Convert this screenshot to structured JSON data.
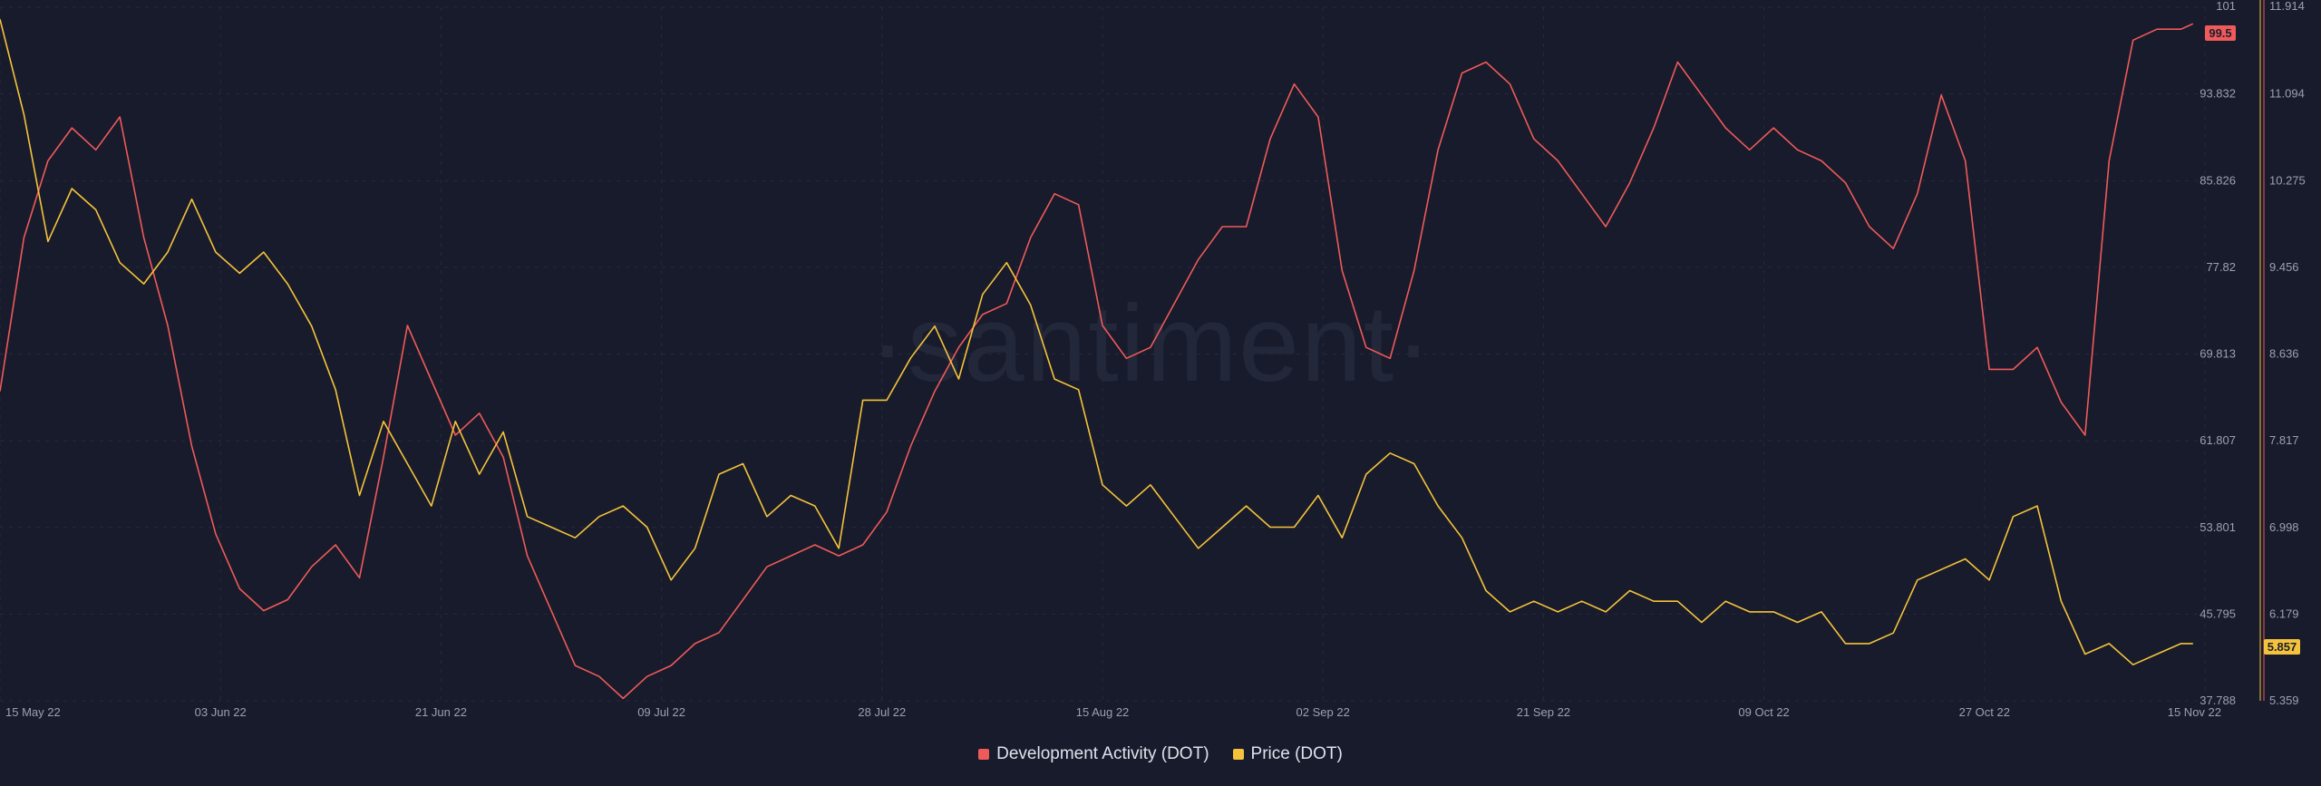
{
  "chart_data": {
    "type": "line",
    "watermark": "·santiment·",
    "x_ticks": [
      "15 May 22",
      "03 Jun 22",
      "21 Jun 22",
      "09 Jul 22",
      "28 Jul 22",
      "15 Aug 22",
      "02 Sep 22",
      "21 Sep 22",
      "09 Oct 22",
      "27 Oct 22",
      "15 Nov 22"
    ],
    "x_range": [
      "2022-05-15",
      "2022-11-15"
    ],
    "y_left": {
      "ticks": [
        "101",
        "93.832",
        "85.826",
        "77.82",
        "69.813",
        "61.807",
        "53.801",
        "45.795",
        "37.788"
      ],
      "ylim": [
        37.788,
        101
      ],
      "current_badge": "99.5",
      "current_value": 99.5
    },
    "y_right": {
      "ticks": [
        "11.914",
        "11.094",
        "10.275",
        "9.456",
        "8.636",
        "7.817",
        "6.998",
        "6.179",
        "5.359"
      ],
      "ylim": [
        5.359,
        11.914
      ],
      "current_badge": "5.857",
      "current_value": 5.857
    },
    "grid": true,
    "legend_position": "bottom-center",
    "series": [
      {
        "name": "Development Activity (DOT)",
        "color": "#ef5a5a",
        "axis": "left",
        "x": [
          "2022-05-15",
          "2022-05-17",
          "2022-05-19",
          "2022-05-21",
          "2022-05-23",
          "2022-05-25",
          "2022-05-27",
          "2022-05-29",
          "2022-05-31",
          "2022-06-02",
          "2022-06-04",
          "2022-06-06",
          "2022-06-08",
          "2022-06-10",
          "2022-06-12",
          "2022-06-14",
          "2022-06-16",
          "2022-06-18",
          "2022-06-20",
          "2022-06-22",
          "2022-06-24",
          "2022-06-26",
          "2022-06-28",
          "2022-06-30",
          "2022-07-02",
          "2022-07-04",
          "2022-07-06",
          "2022-07-08",
          "2022-07-10",
          "2022-07-12",
          "2022-07-14",
          "2022-07-16",
          "2022-07-18",
          "2022-07-20",
          "2022-07-22",
          "2022-07-24",
          "2022-07-26",
          "2022-07-28",
          "2022-07-30",
          "2022-08-01",
          "2022-08-03",
          "2022-08-05",
          "2022-08-07",
          "2022-08-09",
          "2022-08-11",
          "2022-08-13",
          "2022-08-15",
          "2022-08-17",
          "2022-08-19",
          "2022-08-21",
          "2022-08-23",
          "2022-08-25",
          "2022-08-27",
          "2022-08-29",
          "2022-08-31",
          "2022-09-02",
          "2022-09-04",
          "2022-09-06",
          "2022-09-08",
          "2022-09-10",
          "2022-09-12",
          "2022-09-14",
          "2022-09-16",
          "2022-09-18",
          "2022-09-20",
          "2022-09-22",
          "2022-09-24",
          "2022-09-26",
          "2022-09-28",
          "2022-09-30",
          "2022-10-02",
          "2022-10-04",
          "2022-10-06",
          "2022-10-08",
          "2022-10-10",
          "2022-10-12",
          "2022-10-14",
          "2022-10-16",
          "2022-10-18",
          "2022-10-20",
          "2022-10-22",
          "2022-10-24",
          "2022-10-26",
          "2022-10-28",
          "2022-10-30",
          "2022-11-01",
          "2022-11-03",
          "2022-11-05",
          "2022-11-07",
          "2022-11-09",
          "2022-11-11",
          "2022-11-13",
          "2022-11-14"
        ],
        "values": [
          66,
          80,
          87,
          90,
          88,
          91,
          80,
          72,
          61,
          53,
          48,
          46,
          47,
          50,
          52,
          49,
          60,
          72,
          67,
          62,
          64,
          60,
          51,
          46,
          41,
          40,
          38,
          40,
          41,
          43,
          44,
          47,
          50,
          51,
          52,
          51,
          52,
          55,
          61,
          66,
          70,
          73,
          74,
          80,
          84,
          83,
          72,
          69,
          70,
          74,
          78,
          81,
          81,
          89,
          94,
          91,
          77,
          70,
          69,
          77,
          88,
          95,
          96,
          94,
          89,
          87,
          84,
          81,
          85,
          90,
          96,
          93,
          90,
          88,
          90,
          88,
          87,
          85,
          81,
          79,
          84,
          93,
          87,
          68,
          68,
          70,
          65,
          62,
          87,
          98,
          99,
          99,
          99.5
        ]
      },
      {
        "name": "Price (DOT)",
        "color": "#f5c33b",
        "axis": "right",
        "x": [
          "2022-05-15",
          "2022-05-17",
          "2022-05-19",
          "2022-05-21",
          "2022-05-23",
          "2022-05-25",
          "2022-05-27",
          "2022-05-29",
          "2022-05-31",
          "2022-06-02",
          "2022-06-04",
          "2022-06-06",
          "2022-06-08",
          "2022-06-10",
          "2022-06-12",
          "2022-06-14",
          "2022-06-16",
          "2022-06-18",
          "2022-06-20",
          "2022-06-22",
          "2022-06-24",
          "2022-06-26",
          "2022-06-28",
          "2022-06-30",
          "2022-07-02",
          "2022-07-04",
          "2022-07-06",
          "2022-07-08",
          "2022-07-10",
          "2022-07-12",
          "2022-07-14",
          "2022-07-16",
          "2022-07-18",
          "2022-07-20",
          "2022-07-22",
          "2022-07-24",
          "2022-07-26",
          "2022-07-28",
          "2022-07-30",
          "2022-08-01",
          "2022-08-03",
          "2022-08-05",
          "2022-08-07",
          "2022-08-09",
          "2022-08-11",
          "2022-08-13",
          "2022-08-15",
          "2022-08-17",
          "2022-08-19",
          "2022-08-21",
          "2022-08-23",
          "2022-08-25",
          "2022-08-27",
          "2022-08-29",
          "2022-08-31",
          "2022-09-02",
          "2022-09-04",
          "2022-09-06",
          "2022-09-08",
          "2022-09-10",
          "2022-09-12",
          "2022-09-14",
          "2022-09-16",
          "2022-09-18",
          "2022-09-20",
          "2022-09-22",
          "2022-09-24",
          "2022-09-26",
          "2022-09-28",
          "2022-09-30",
          "2022-10-02",
          "2022-10-04",
          "2022-10-06",
          "2022-10-08",
          "2022-10-10",
          "2022-10-12",
          "2022-10-14",
          "2022-10-16",
          "2022-10-18",
          "2022-10-20",
          "2022-10-22",
          "2022-10-24",
          "2022-10-26",
          "2022-10-28",
          "2022-10-30",
          "2022-11-01",
          "2022-11-03",
          "2022-11-05",
          "2022-11-07",
          "2022-11-09",
          "2022-11-11",
          "2022-11-13",
          "2022-11-14"
        ],
        "values": [
          11.8,
          10.9,
          9.7,
          10.2,
          10.0,
          9.5,
          9.3,
          9.6,
          10.1,
          9.6,
          9.4,
          9.6,
          9.3,
          8.9,
          8.3,
          7.3,
          8.0,
          7.6,
          7.2,
          8.0,
          7.5,
          7.9,
          7.1,
          7.0,
          6.9,
          7.1,
          7.2,
          7.0,
          6.5,
          6.8,
          7.5,
          7.6,
          7.1,
          7.3,
          7.2,
          6.8,
          8.2,
          8.2,
          8.6,
          8.9,
          8.4,
          9.2,
          9.5,
          9.1,
          8.4,
          8.3,
          7.4,
          7.2,
          7.4,
          7.1,
          6.8,
          7.0,
          7.2,
          7.0,
          7.0,
          7.3,
          6.9,
          7.5,
          7.7,
          7.6,
          7.2,
          6.9,
          6.4,
          6.2,
          6.3,
          6.2,
          6.3,
          6.2,
          6.4,
          6.3,
          6.3,
          6.1,
          6.3,
          6.2,
          6.2,
          6.1,
          6.2,
          5.9,
          5.9,
          6.0,
          6.5,
          6.6,
          6.7,
          6.5,
          7.1,
          7.2,
          6.3,
          5.8,
          5.9,
          5.7,
          5.8,
          5.9,
          5.9
        ]
      }
    ]
  }
}
